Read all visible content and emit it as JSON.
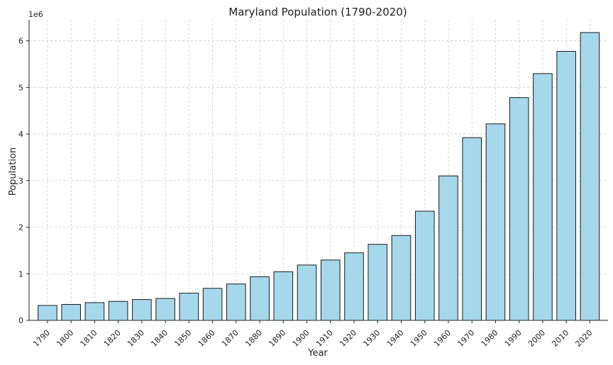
{
  "chart_data": {
    "type": "bar",
    "title": "Maryland Population (1790-2020)",
    "xlabel": "Year",
    "ylabel": "Population",
    "y_scale_label": "1e6",
    "categories": [
      "1790",
      "1800",
      "1810",
      "1820",
      "1830",
      "1840",
      "1850",
      "1860",
      "1870",
      "1880",
      "1890",
      "1900",
      "1910",
      "1920",
      "1930",
      "1940",
      "1950",
      "1960",
      "1970",
      "1980",
      "1990",
      "2000",
      "2010",
      "2020"
    ],
    "values": [
      319728,
      341548,
      380546,
      407350,
      447040,
      470019,
      583034,
      687049,
      780894,
      934943,
      1042390,
      1188044,
      1295346,
      1449661,
      1631526,
      1821244,
      2343001,
      3100689,
      3922399,
      4216975,
      4781468,
      5296486,
      5773552,
      6177224
    ],
    "ylim": [
      0,
      6450000
    ],
    "yticks": [
      0,
      1000000,
      2000000,
      3000000,
      4000000,
      5000000,
      6000000
    ],
    "ytick_labels": [
      "0",
      "1",
      "2",
      "3",
      "4",
      "5",
      "6"
    ],
    "grid": true,
    "bar_color": "#a6d8ec",
    "bar_edge_color": "#1a1a1a",
    "grid_color": "#cccccc"
  }
}
